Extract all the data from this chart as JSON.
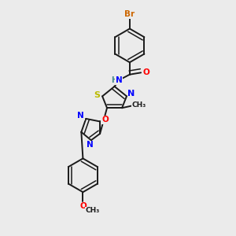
{
  "bg_color": "#ebebeb",
  "bond_color": "#1a1a1a",
  "atom_colors": {
    "Br": "#cc6600",
    "O": "#ff0000",
    "N": "#0000ff",
    "S": "#bbbb00",
    "H": "#448888",
    "C": "#1a1a1a"
  }
}
